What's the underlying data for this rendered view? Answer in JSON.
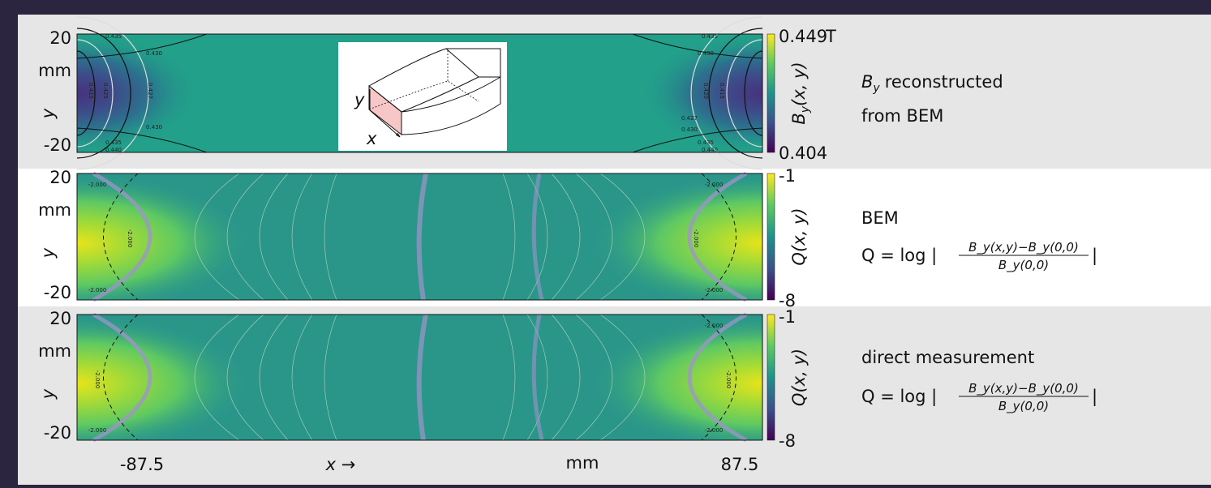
{
  "panels": [
    {
      "y_ticks": [
        "20",
        "-20"
      ],
      "y_unit": "mm",
      "y_label": "y",
      "colorbar": {
        "symbol": "B",
        "subscript": "y",
        "args": "(x, y)",
        "max": "0.449",
        "min": "0.404",
        "unit": "T"
      },
      "caption": {
        "symbol": "B",
        "subscript": "y",
        "line1": "reconstructed",
        "line2": "from BEM"
      },
      "contour_labels": [
        "0.435",
        "0.430",
        "0.415",
        "0.425",
        "0.427",
        "0.430",
        "0.440",
        "0.435",
        "0.435",
        "0.430",
        "0.420",
        "0.415",
        "0.427",
        "0.430",
        "0.435",
        "0.440"
      ]
    },
    {
      "y_ticks": [
        "20",
        "-20"
      ],
      "y_unit": "mm",
      "y_label": "y",
      "colorbar": {
        "symbol": "Q",
        "args": "(x, y)",
        "max": "-1",
        "min": "-8"
      },
      "caption": {
        "line1": "BEM",
        "formula": {
          "lhs": "Q = log |",
          "numerator": "B_y(x,y)−B_y(0,0)",
          "denominator": "B_y(0,0)",
          "rhs": "|"
        }
      },
      "contour_labels": [
        "-2.000",
        "-2.000",
        "-2.000",
        "-2.000",
        "-2.000",
        "-2.000"
      ]
    },
    {
      "y_ticks": [
        "20",
        "-20"
      ],
      "y_unit": "mm",
      "y_label": "y",
      "colorbar": {
        "symbol": "Q",
        "args": "(x, y)",
        "max": "-1",
        "min": "-8"
      },
      "caption": {
        "line1": "direct measurement",
        "formula": {
          "lhs": "Q = log |",
          "numerator": "B_y(x,y)−B_y(0,0)",
          "denominator": "B_y(0,0)",
          "rhs": "|"
        }
      },
      "contour_labels": [
        "-2.000",
        "-2.000",
        "-2.000",
        "-2.000",
        "-2.000"
      ]
    }
  ],
  "x_axis": {
    "ticks": [
      "-87.5",
      "87.5"
    ],
    "label": "x →",
    "unit": "mm"
  },
  "inset": {
    "x_label": "x",
    "y_label": "y"
  }
}
